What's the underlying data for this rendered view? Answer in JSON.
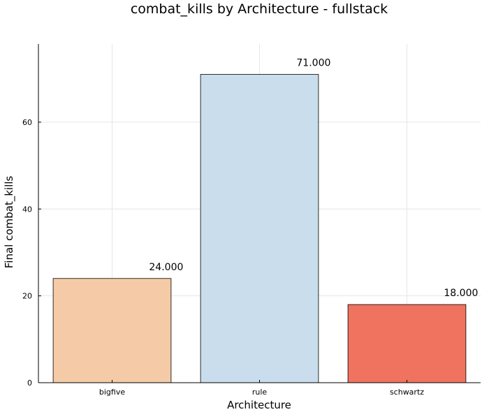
{
  "chart_data": {
    "type": "bar",
    "title": "combat_kills by Architecture - fullstack",
    "xlabel": "Architecture",
    "ylabel": "Final combat_kills",
    "categories": [
      "bigfive",
      "rule",
      "schwartz"
    ],
    "values": [
      24,
      71,
      18
    ],
    "value_labels": [
      "24.000",
      "71.000",
      "18.000"
    ],
    "colors": [
      "#f5cba7",
      "#c9ddec",
      "#ef735f"
    ],
    "ylim": [
      0,
      78
    ],
    "yticks": [
      0,
      20,
      40,
      60
    ],
    "ytick_labels": [
      "0",
      "20",
      "40",
      "60"
    ],
    "grid": true,
    "legend": "none"
  }
}
